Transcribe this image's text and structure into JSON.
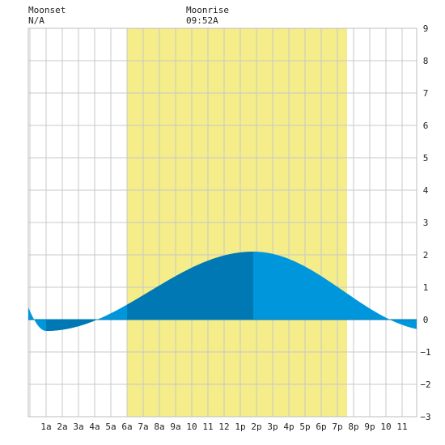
{
  "moon": {
    "moonset_label": "Moonset",
    "moonset_value": "N/A",
    "moonrise_label": "Moonrise",
    "moonrise_value": "09:52A"
  },
  "colors": {
    "daylight": "#f5ed8a",
    "grid": "#c8c8c8",
    "tide_dark": "#0078b4",
    "tide_light": "#0096dc",
    "baseline": "#0078b4"
  },
  "chart_data": {
    "type": "area",
    "title": "",
    "xlabel": "",
    "ylabel": "",
    "xlim": [
      0,
      24
    ],
    "ylim": [
      -3,
      9
    ],
    "y_ticks": [
      -3,
      -2,
      -1,
      0,
      1,
      2,
      3,
      4,
      5,
      6,
      7,
      8,
      9
    ],
    "x_tick_labels": [
      "1a",
      "2a",
      "3a",
      "4a",
      "5a",
      "6a",
      "7a",
      "8a",
      "9a",
      "10",
      "11",
      "12",
      "1p",
      "2p",
      "3p",
      "4p",
      "5p",
      "6p",
      "7p",
      "8p",
      "9p",
      "10",
      "11"
    ],
    "daylight": {
      "start": 6.0,
      "end": 19.6
    },
    "tide_extremes": [
      {
        "time": -2.0,
        "height": 2.1
      },
      {
        "time": 1.0,
        "height": -0.35
      },
      {
        "time": 13.8,
        "height": 2.1
      },
      {
        "time": 25.0,
        "height": -0.35
      }
    ],
    "highlight_band": {
      "start": 6.0,
      "end": 13.8
    },
    "x_range": [
      -0.1,
      23.9
    ],
    "grid": true
  }
}
